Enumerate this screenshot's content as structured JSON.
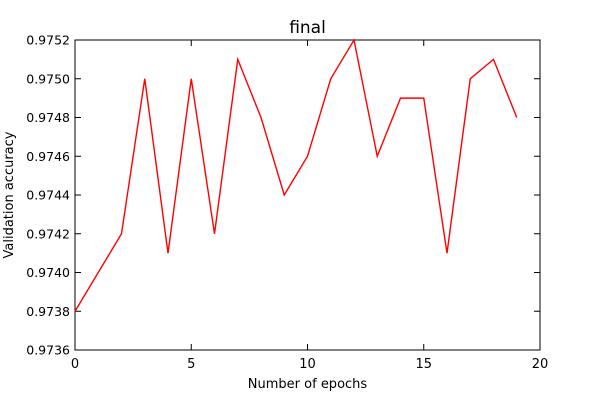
{
  "chart_data": {
    "type": "line",
    "title": "final",
    "xlabel": "Number of epochs",
    "ylabel": "Validation accuracy",
    "xlim": [
      0,
      20
    ],
    "ylim": [
      0.9736,
      0.9752
    ],
    "x_ticks": [
      0,
      5,
      10,
      15,
      20
    ],
    "y_ticks": [
      0.9736,
      0.9738,
      0.974,
      0.9742,
      0.9744,
      0.9746,
      0.9748,
      0.975,
      0.9752
    ],
    "x_tick_labels": [
      "0",
      "5",
      "10",
      "15",
      "20"
    ],
    "y_tick_labels": [
      "0.9736",
      "0.9738",
      "0.9740",
      "0.9742",
      "0.9744",
      "0.9746",
      "0.9748",
      "0.9750",
      "0.9752"
    ],
    "grid": false,
    "series": [
      {
        "color": "#ff0000",
        "x": [
          0,
          2,
          3,
          4,
          5,
          6,
          7,
          8,
          9,
          10,
          11,
          12,
          13,
          14,
          15,
          16,
          17,
          18,
          19
        ],
        "y": [
          0.9738,
          0.9742,
          0.975,
          0.9741,
          0.975,
          0.9742,
          0.9751,
          0.9748,
          0.9744,
          0.9746,
          0.975,
          0.9752,
          0.9746,
          0.9749,
          0.9749,
          0.9741,
          0.975,
          0.9751,
          0.9748
        ]
      }
    ]
  }
}
